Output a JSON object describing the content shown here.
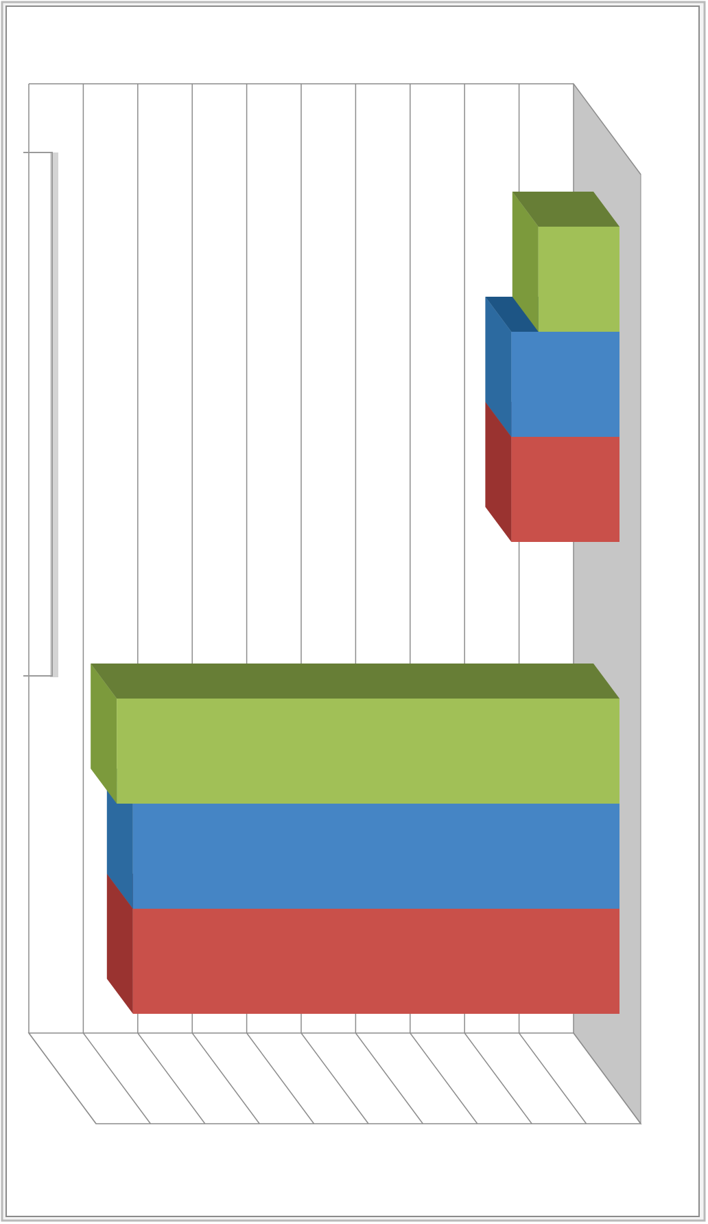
{
  "chart_data": {
    "type": "bar",
    "orientation": "horizontal-3d-clustered",
    "title": "",
    "xlabel": "",
    "ylabel": "",
    "categories": [
      "",
      ""
    ],
    "series": [
      {
        "values": [
          0.9,
          0.2
        ],
        "color": "#C9504A",
        "side": "#9A3330",
        "top": "#7E2521"
      },
      {
        "values": [
          0.9,
          0.2
        ],
        "color": "#4585C5",
        "side": "#2C6AA0",
        "top": "#1D5585"
      },
      {
        "values": [
          0.93,
          0.15
        ],
        "color": "#A1C057",
        "side": "#7C9A3C",
        "top": "#677E36"
      }
    ],
    "xlim": [
      0,
      1
    ],
    "xgrid_count": 10,
    "grid": true,
    "legend": "none",
    "colors": {
      "frame": "#9a9a9a",
      "grid": "#8c8c8c",
      "back_wall": "#c6c6c6"
    }
  }
}
